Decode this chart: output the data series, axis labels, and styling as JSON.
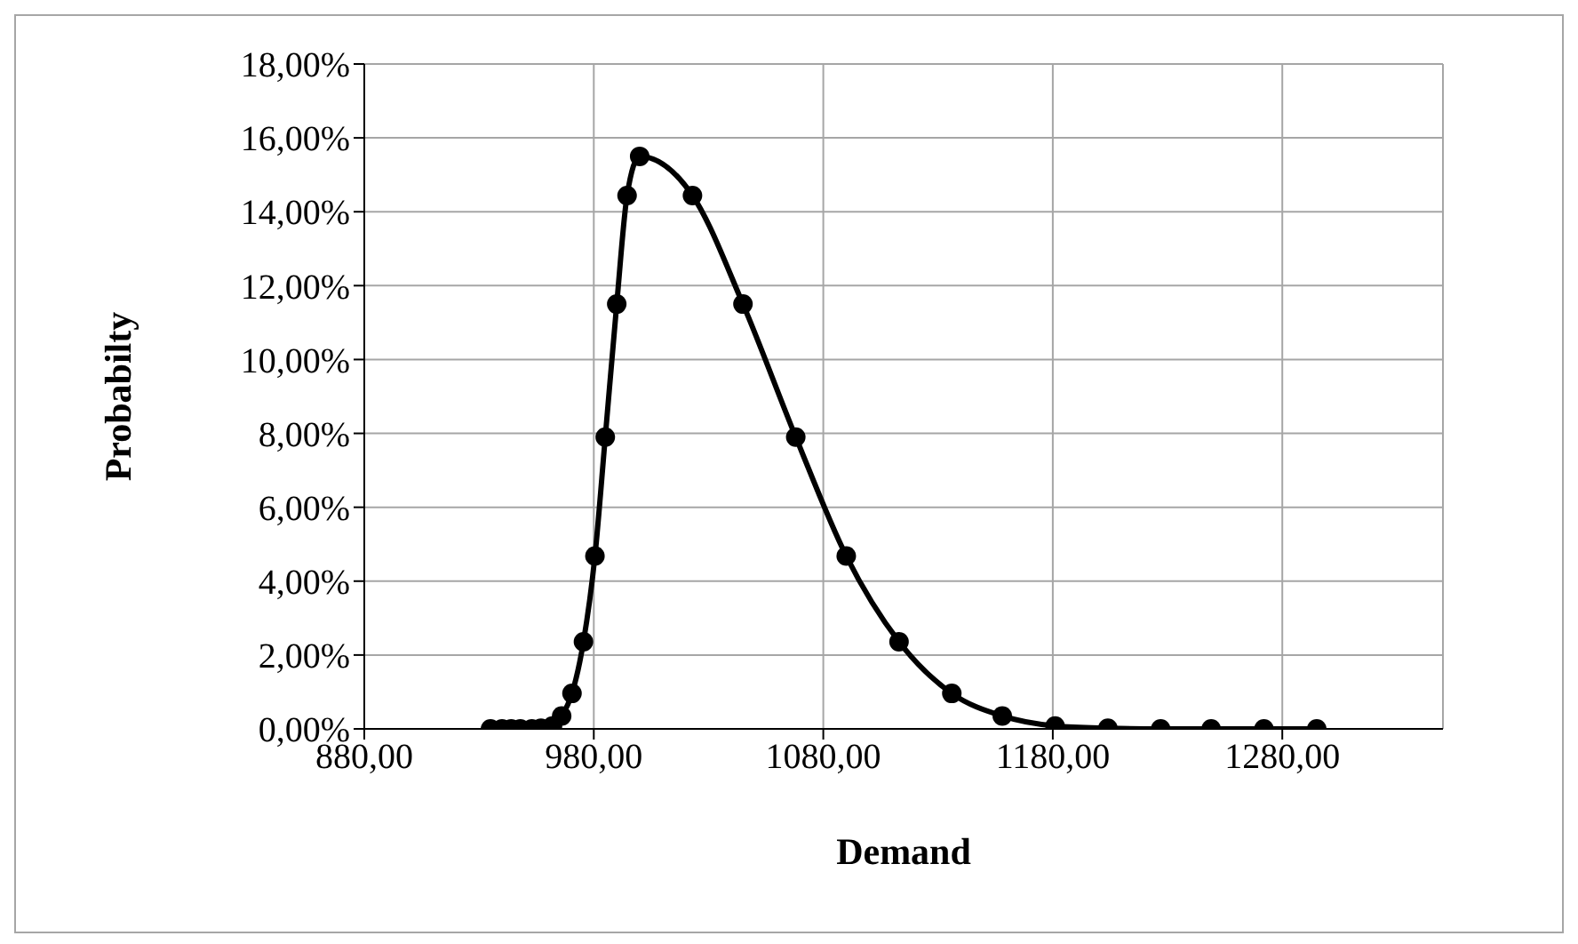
{
  "chart_data": {
    "type": "line",
    "xlabel": "Demand",
    "ylabel": "Probabilty",
    "x": [
      935,
      940,
      944,
      948,
      953,
      957,
      962,
      966,
      970.5,
      975.5,
      980.5,
      985,
      990,
      994.5,
      1000,
      1023,
      1045,
      1068,
      1090,
      1113,
      1136,
      1158,
      1181,
      1204,
      1227,
      1249,
      1272,
      1295
    ],
    "series": [
      {
        "color": "#000000",
        "values": [
          0,
          0,
          0,
          0,
          0,
          0.02,
          0.08,
          0.35,
          0.96,
          2.36,
          4.68,
          7.9,
          11.5,
          14.44,
          15.5,
          14.44,
          11.5,
          7.9,
          4.68,
          2.36,
          0.96,
          0.35,
          0.08,
          0.02,
          0,
          0,
          0,
          0
        ]
      }
    ],
    "xlim": [
      880,
      1350
    ],
    "xticks": [
      {
        "value": 880,
        "label": "880,00"
      },
      {
        "value": 980,
        "label": "980,00"
      },
      {
        "value": 1080,
        "label": "1080,00"
      },
      {
        "value": 1180,
        "label": "1180,00"
      },
      {
        "value": 1280,
        "label": "1280,00"
      }
    ],
    "ylim": [
      0,
      18
    ],
    "yticks": [
      {
        "value": 0,
        "label": "0,00%"
      },
      {
        "value": 2,
        "label": "2,00%"
      },
      {
        "value": 4,
        "label": "4,00%"
      },
      {
        "value": 6,
        "label": "6,00%"
      },
      {
        "value": 8,
        "label": "8,00%"
      },
      {
        "value": 10,
        "label": "10,00%"
      },
      {
        "value": 12,
        "label": "12,00%"
      },
      {
        "value": 14,
        "label": "14,00%"
      },
      {
        "value": 16,
        "label": "16,00%"
      },
      {
        "value": 18,
        "label": "18,00%"
      }
    ],
    "grid": true,
    "legend": false,
    "marker": "circle",
    "line_style": "solid"
  }
}
